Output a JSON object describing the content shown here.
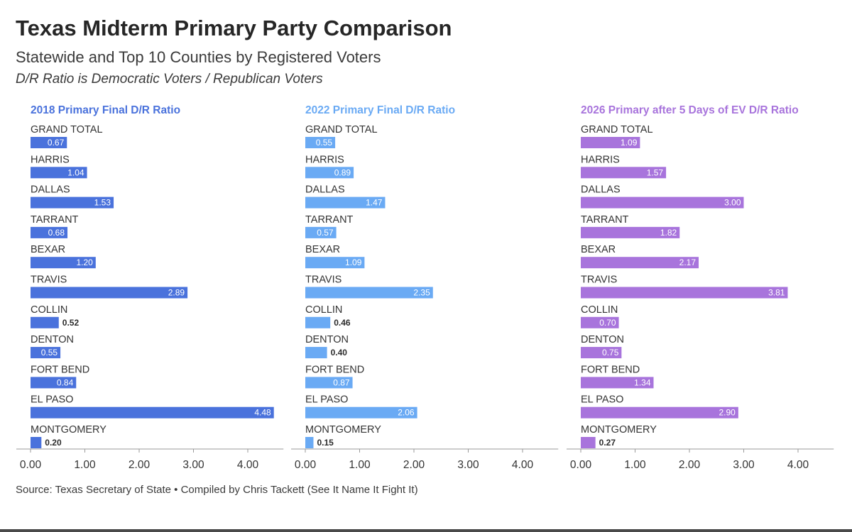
{
  "title": "Texas Midterm Primary Party Comparison",
  "subtitle": "Statewide and Top 10 Counties by Registered Voters",
  "note": "D/R Ratio is Democratic Voters / Republican Voters",
  "source": "Source: Texas Secretary of State • Compiled by Chris Tackett (See It Name It Fight It)",
  "colors": {
    "2018": "#4a72dc",
    "2022": "#6aaaf4",
    "2026": "#a874dc"
  },
  "chart_data": [
    {
      "type": "bar",
      "orientation": "horizontal",
      "title": "2018 Primary Final D/R Ratio",
      "color": "#4a72dc",
      "categories": [
        "GRAND TOTAL",
        "HARRIS",
        "DALLAS",
        "TARRANT",
        "BEXAR",
        "TRAVIS",
        "COLLIN",
        "DENTON",
        "FORT BEND",
        "EL PASO",
        "MONTGOMERY"
      ],
      "values": [
        0.67,
        1.04,
        1.53,
        0.68,
        1.2,
        2.89,
        0.52,
        0.55,
        0.84,
        4.48,
        0.2
      ],
      "labels": [
        "0.67",
        "1.04",
        "1.53",
        "0.68",
        "1.20",
        "2.89",
        "0.52",
        "0.55",
        "0.84",
        "4.48",
        "0.20"
      ],
      "ticks": [
        "0.00",
        "1.00",
        "2.00",
        "3.00",
        "4.00"
      ],
      "xlim": [
        0,
        4.5
      ],
      "grid": false
    },
    {
      "type": "bar",
      "orientation": "horizontal",
      "title": "2022 Primary Final D/R Ratio",
      "color": "#6aaaf4",
      "categories": [
        "GRAND TOTAL",
        "HARRIS",
        "DALLAS",
        "TARRANT",
        "BEXAR",
        "TRAVIS",
        "COLLIN",
        "DENTON",
        "FORT BEND",
        "EL PASO",
        "MONTGOMERY"
      ],
      "values": [
        0.55,
        0.89,
        1.47,
        0.57,
        1.09,
        2.35,
        0.46,
        0.4,
        0.87,
        2.06,
        0.15
      ],
      "labels": [
        "0.55",
        "0.89",
        "1.47",
        "0.57",
        "1.09",
        "2.35",
        "0.46",
        "0.40",
        "0.87",
        "2.06",
        "0.15"
      ],
      "ticks": [
        "0.00",
        "1.00",
        "2.00",
        "3.00",
        "4.00"
      ],
      "xlim": [
        0,
        4.5
      ],
      "grid": false
    },
    {
      "type": "bar",
      "orientation": "horizontal",
      "title": "2026 Primary after 5 Days of EV D/R Ratio",
      "color": "#a874dc",
      "categories": [
        "GRAND TOTAL",
        "HARRIS",
        "DALLAS",
        "TARRANT",
        "BEXAR",
        "TRAVIS",
        "COLLIN",
        "DENTON",
        "FORT BEND",
        "EL PASO",
        "MONTGOMERY"
      ],
      "values": [
        1.09,
        1.57,
        3.0,
        1.82,
        2.17,
        3.81,
        0.7,
        0.75,
        1.34,
        2.9,
        0.27
      ],
      "labels": [
        "1.09",
        "1.57",
        "3.00",
        "1.82",
        "2.17",
        "3.81",
        "0.70",
        "0.75",
        "1.34",
        "2.90",
        "0.27"
      ],
      "ticks": [
        "0.00",
        "1.00",
        "2.00",
        "3.00",
        "4.00"
      ],
      "xlim": [
        0,
        4.5
      ],
      "grid": false
    }
  ]
}
